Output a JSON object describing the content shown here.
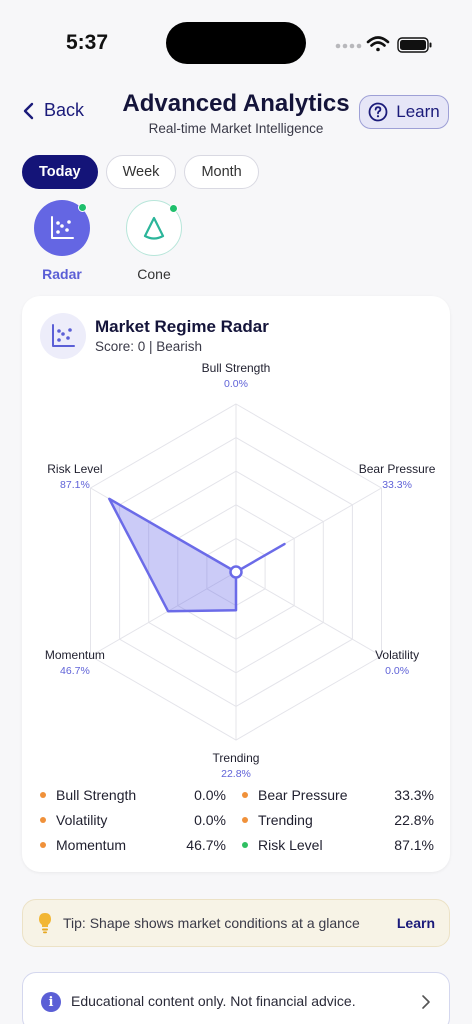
{
  "status": {
    "time": "5:37"
  },
  "header": {
    "back_label": "Back",
    "title": "Advanced Analytics",
    "subtitle": "Real-time Market Intelligence",
    "learn_label": "Learn"
  },
  "tabs": [
    {
      "label": "Today",
      "active": true
    },
    {
      "label": "Week",
      "active": false
    },
    {
      "label": "Month",
      "active": false
    }
  ],
  "views": [
    {
      "label": "Radar",
      "icon": "scatter-chart-icon",
      "active": true
    },
    {
      "label": "Cone",
      "icon": "cone-icon",
      "active": false
    }
  ],
  "card": {
    "title": "Market Regime Radar",
    "subtitle": "Score: 0 | Bearish"
  },
  "chart_data": {
    "type": "radar",
    "max": 100,
    "rings": 5,
    "axes": [
      {
        "label": "Bull Strength",
        "value": 0.0,
        "display": "0.0%"
      },
      {
        "label": "Bear Pressure",
        "value": 33.3,
        "display": "33.3%"
      },
      {
        "label": "Volatility",
        "value": 0.0,
        "display": "0.0%"
      },
      {
        "label": "Trending",
        "value": 22.8,
        "display": "22.8%"
      },
      {
        "label": "Momentum",
        "value": 46.7,
        "display": "46.7%"
      },
      {
        "label": "Risk Level",
        "value": 87.1,
        "display": "87.1%"
      }
    ],
    "fill_color": "#6b6be8",
    "grid": true
  },
  "legend": [
    {
      "label": "Bull Strength",
      "value": "0.0%",
      "color": "#f0913a"
    },
    {
      "label": "Bear Pressure",
      "value": "33.3%",
      "color": "#f0913a"
    },
    {
      "label": "Volatility",
      "value": "0.0%",
      "color": "#f0913a"
    },
    {
      "label": "Trending",
      "value": "22.8%",
      "color": "#f0913a"
    },
    {
      "label": "Momentum",
      "value": "46.7%",
      "color": "#f0913a"
    },
    {
      "label": "Risk Level",
      "value": "87.1%",
      "color": "#2fbf62"
    }
  ],
  "tip": {
    "text": "Tip: Shape shows market conditions at a glance",
    "link": "Learn"
  },
  "disclaimer": {
    "text": "Educational content only. Not financial advice."
  }
}
